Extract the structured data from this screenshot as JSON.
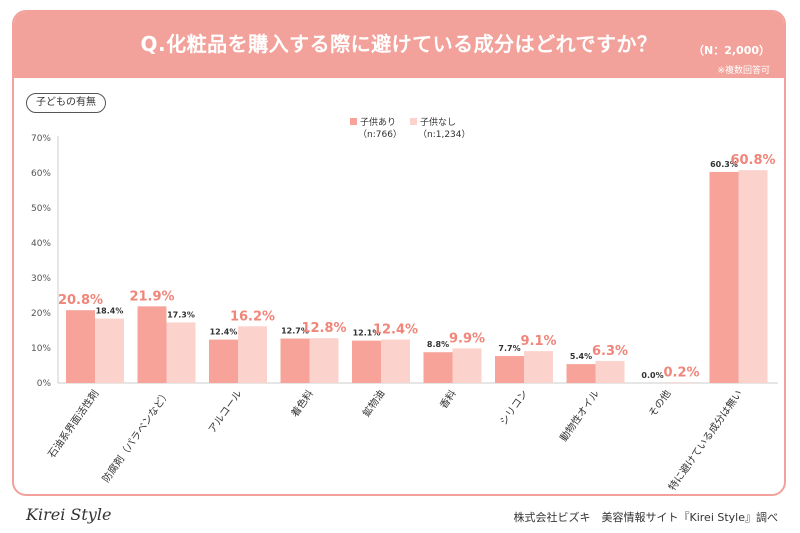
{
  "header": {
    "title": "Q.化粧品を購入する際に避けている成分はどれですか？",
    "sample_size": "（N：2,000）",
    "note": "※複数回答可"
  },
  "filter_label": "子どもの有無",
  "legend": [
    {
      "label": "子供あり",
      "sub": "（n:766）",
      "color": "#f7a39a"
    },
    {
      "label": "子供なし",
      "sub": "（n:1,234）",
      "color": "#fcd2cd"
    }
  ],
  "chart_data": {
    "type": "bar",
    "categories": [
      "石油系界面活性剤",
      "防腐剤（パラベンなど）",
      "アルコール",
      "着色料",
      "鉱物油",
      "香料",
      "シリコン",
      "動物性オイル",
      "その他",
      "特に避けている成分は無い"
    ],
    "series": [
      {
        "name": "子供あり",
        "values": [
          20.8,
          21.9,
          12.4,
          12.7,
          12.1,
          8.8,
          7.7,
          5.4,
          0.0,
          60.3
        ]
      },
      {
        "name": "子供なし",
        "values": [
          18.4,
          17.3,
          16.2,
          12.8,
          12.4,
          9.9,
          9.1,
          6.3,
          0.2,
          60.8
        ]
      }
    ],
    "data_labels": [
      [
        "20.8%",
        "21.9%",
        "12.4%",
        "12.7%",
        "12.1%",
        "8.8%",
        "7.7%",
        "5.4%",
        "0.0%",
        "60.3%"
      ],
      [
        "18.4%",
        "17.3%",
        "16.2%",
        "12.8%",
        "12.4%",
        "9.9%",
        "9.1%",
        "6.3%",
        "0.2%",
        "60.8%"
      ]
    ],
    "highlight_series": [
      0,
      0,
      1,
      1,
      1,
      1,
      1,
      1,
      1,
      1
    ],
    "yticks": [
      "0%",
      "10%",
      "20%",
      "30%",
      "40%",
      "50%",
      "60%",
      "70%"
    ],
    "ylim": [
      0,
      70
    ],
    "grid": false,
    "colors": {
      "series1": "#f7a39a",
      "series2": "#fcd2cd",
      "highlight_text": "#f0857a",
      "axis": "#cccccc"
    }
  },
  "footer": {
    "logo": "Kirei Style",
    "credit": "株式会社ビズキ　美容情報サイト『Kirei Style』調べ"
  }
}
